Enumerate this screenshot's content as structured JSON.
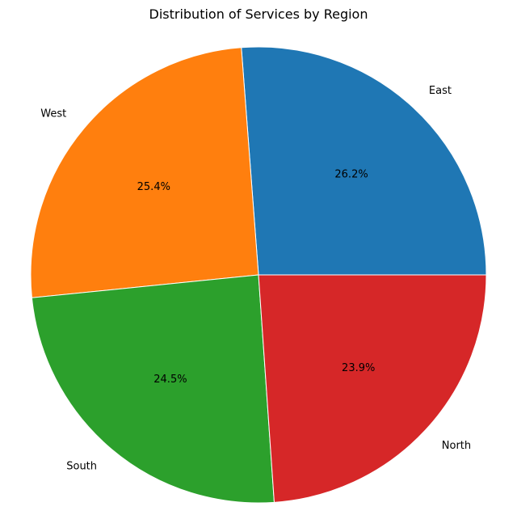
{
  "chart_data": {
    "type": "pie",
    "title": "Distribution of Services by Region",
    "slices": [
      {
        "label": "East",
        "value": 26.2,
        "pct_label": "26.2%",
        "color": "#1f77b4"
      },
      {
        "label": "West",
        "value": 25.4,
        "pct_label": "25.4%",
        "color": "#ff7f0e"
      },
      {
        "label": "South",
        "value": 24.5,
        "pct_label": "24.5%",
        "color": "#2ca02c"
      },
      {
        "label": "North",
        "value": 23.9,
        "pct_label": "23.9%",
        "color": "#d62728"
      }
    ],
    "start_angle_deg": 0,
    "direction": "counterclockwise",
    "legend": "none"
  }
}
